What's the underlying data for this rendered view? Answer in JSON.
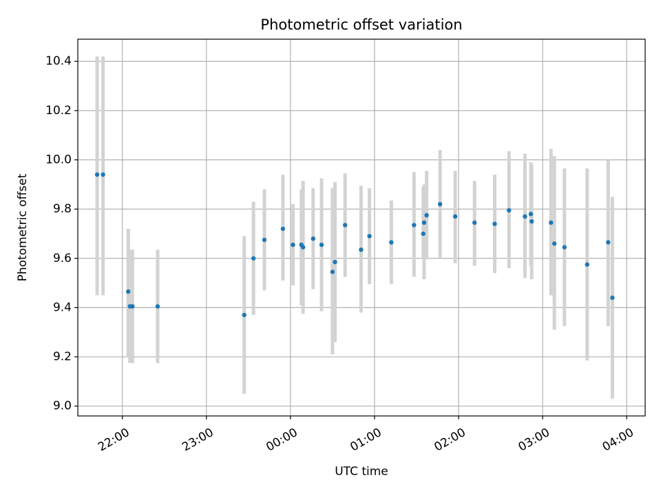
{
  "chart_data": {
    "type": "scatter",
    "title": "Photometric offset variation",
    "xlabel": "UTC time",
    "ylabel": "Photometric offset",
    "x_unit": "hours (UTC, continuing past midnight)",
    "xlim": [
      21.47,
      28.22
    ],
    "ylim": [
      8.96,
      10.49
    ],
    "grid": true,
    "x_ticks": [
      {
        "value": 22,
        "label": "22:00"
      },
      {
        "value": 23,
        "label": "23:00"
      },
      {
        "value": 24,
        "label": "00:00"
      },
      {
        "value": 25,
        "label": "01:00"
      },
      {
        "value": 26,
        "label": "02:00"
      },
      {
        "value": 27,
        "label": "03:00"
      },
      {
        "value": 28,
        "label": "04:00"
      }
    ],
    "y_ticks": [
      {
        "value": 9.0,
        "label": "9.0"
      },
      {
        "value": 9.2,
        "label": "9.2"
      },
      {
        "value": 9.4,
        "label": "9.4"
      },
      {
        "value": 9.6,
        "label": "9.6"
      },
      {
        "value": 9.8,
        "label": "9.8"
      },
      {
        "value": 10.0,
        "label": "10.0"
      },
      {
        "value": 10.2,
        "label": "10.2"
      },
      {
        "value": 10.4,
        "label": "10.4"
      }
    ],
    "colors": {
      "point": "#1f77b4",
      "errorbar": "#d3d3d3"
    },
    "points": [
      {
        "x": 21.7,
        "y": 9.94,
        "lo": 9.45,
        "hi": 10.42
      },
      {
        "x": 21.77,
        "y": 9.94,
        "lo": 9.45,
        "hi": 10.42
      },
      {
        "x": 22.07,
        "y": 9.465,
        "lo": 9.2,
        "hi": 9.72
      },
      {
        "x": 22.09,
        "y": 9.405,
        "lo": 9.175,
        "hi": 9.635
      },
      {
        "x": 22.12,
        "y": 9.405,
        "lo": 9.175,
        "hi": 9.635
      },
      {
        "x": 22.42,
        "y": 9.405,
        "lo": 9.175,
        "hi": 9.635
      },
      {
        "x": 23.45,
        "y": 9.37,
        "lo": 9.05,
        "hi": 9.69
      },
      {
        "x": 23.56,
        "y": 9.6,
        "lo": 9.37,
        "hi": 9.83
      },
      {
        "x": 23.69,
        "y": 9.675,
        "lo": 9.47,
        "hi": 9.88
      },
      {
        "x": 23.91,
        "y": 9.72,
        "lo": 9.51,
        "hi": 9.94
      },
      {
        "x": 24.03,
        "y": 9.655,
        "lo": 9.49,
        "hi": 9.82
      },
      {
        "x": 24.13,
        "y": 9.655,
        "lo": 9.41,
        "hi": 9.88
      },
      {
        "x": 24.15,
        "y": 9.645,
        "lo": 9.375,
        "hi": 9.915
      },
      {
        "x": 24.27,
        "y": 9.68,
        "lo": 9.475,
        "hi": 9.885
      },
      {
        "x": 24.37,
        "y": 9.655,
        "lo": 9.385,
        "hi": 9.925
      },
      {
        "x": 24.5,
        "y": 9.545,
        "lo": 9.21,
        "hi": 9.885
      },
      {
        "x": 24.53,
        "y": 9.585,
        "lo": 9.26,
        "hi": 9.91
      },
      {
        "x": 24.65,
        "y": 9.735,
        "lo": 9.525,
        "hi": 9.945
      },
      {
        "x": 24.84,
        "y": 9.635,
        "lo": 9.38,
        "hi": 9.895
      },
      {
        "x": 24.94,
        "y": 9.69,
        "lo": 9.495,
        "hi": 9.885
      },
      {
        "x": 25.2,
        "y": 9.665,
        "lo": 9.495,
        "hi": 9.835
      },
      {
        "x": 25.47,
        "y": 9.735,
        "lo": 9.525,
        "hi": 9.95
      },
      {
        "x": 25.58,
        "y": 9.7,
        "lo": 9.6,
        "hi": 9.89
      },
      {
        "x": 25.59,
        "y": 9.745,
        "lo": 9.515,
        "hi": 9.9
      },
      {
        "x": 25.62,
        "y": 9.775,
        "lo": 9.595,
        "hi": 9.955
      },
      {
        "x": 25.78,
        "y": 9.82,
        "lo": 9.6,
        "hi": 10.04
      },
      {
        "x": 25.96,
        "y": 9.77,
        "lo": 9.58,
        "hi": 9.955
      },
      {
        "x": 26.19,
        "y": 9.745,
        "lo": 9.57,
        "hi": 9.915
      },
      {
        "x": 26.43,
        "y": 9.74,
        "lo": 9.54,
        "hi": 9.94
      },
      {
        "x": 26.6,
        "y": 9.795,
        "lo": 9.56,
        "hi": 10.035
      },
      {
        "x": 26.79,
        "y": 9.77,
        "lo": 9.52,
        "hi": 10.025
      },
      {
        "x": 26.86,
        "y": 9.78,
        "lo": 9.57,
        "hi": 9.99
      },
      {
        "x": 26.87,
        "y": 9.75,
        "lo": 9.515,
        "hi": 9.98
      },
      {
        "x": 27.1,
        "y": 9.745,
        "lo": 9.45,
        "hi": 10.045
      },
      {
        "x": 27.14,
        "y": 9.66,
        "lo": 9.31,
        "hi": 10.015
      },
      {
        "x": 27.26,
        "y": 9.645,
        "lo": 9.325,
        "hi": 9.965
      },
      {
        "x": 27.53,
        "y": 9.575,
        "lo": 9.185,
        "hi": 9.965
      },
      {
        "x": 27.78,
        "y": 9.665,
        "lo": 9.325,
        "hi": 10.0
      },
      {
        "x": 27.83,
        "y": 9.44,
        "lo": 9.03,
        "hi": 9.85
      }
    ]
  }
}
